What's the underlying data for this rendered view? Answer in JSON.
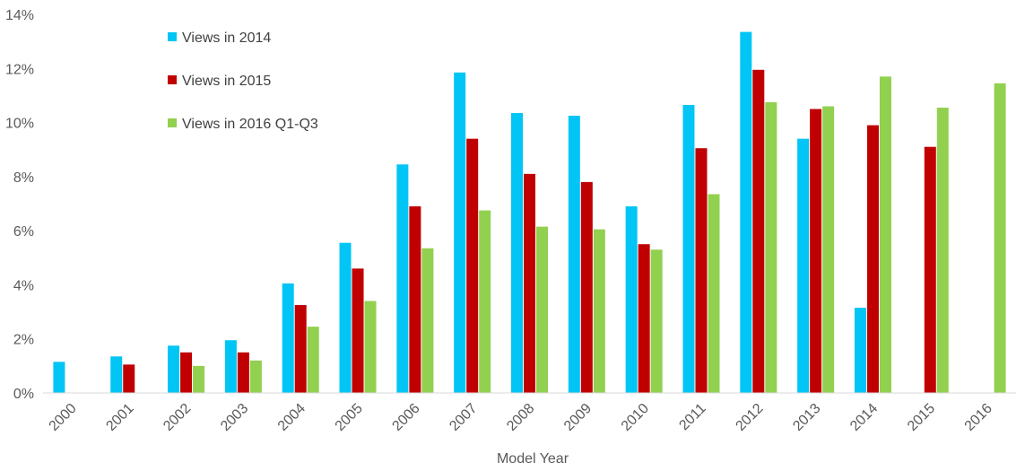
{
  "chart_data": {
    "type": "bar",
    "title": "",
    "xlabel": "Model Year",
    "ylabel": "",
    "ylim": [
      0,
      14
    ],
    "y_ticks": [
      "0%",
      "2%",
      "4%",
      "6%",
      "8%",
      "10%",
      "12%",
      "14%"
    ],
    "y_unit": "%",
    "grid": false,
    "legend_position": "top-left",
    "categories": [
      "2000",
      "2001",
      "2002",
      "2003",
      "2004",
      "2005",
      "2006",
      "2007",
      "2008",
      "2009",
      "2010",
      "2011",
      "2012",
      "2013",
      "2014",
      "2015",
      "2016"
    ],
    "series": [
      {
        "name": "Views in 2014",
        "color": "#00c5f5",
        "values": [
          1.15,
          1.35,
          1.75,
          1.95,
          4.05,
          5.55,
          8.45,
          11.85,
          10.35,
          10.25,
          6.9,
          10.65,
          13.35,
          9.4,
          3.15,
          null,
          null
        ]
      },
      {
        "name": "Views in 2015",
        "color": "#c00000",
        "values": [
          null,
          1.05,
          1.5,
          1.5,
          3.25,
          4.6,
          6.9,
          9.4,
          8.1,
          7.8,
          5.5,
          9.05,
          11.95,
          10.5,
          9.9,
          9.1,
          null
        ]
      },
      {
        "name": "Views in 2016 Q1-Q3",
        "color": "#92d050",
        "values": [
          null,
          null,
          1.0,
          1.2,
          2.45,
          3.4,
          5.35,
          6.75,
          6.15,
          6.05,
          5.3,
          7.35,
          10.75,
          10.6,
          11.7,
          10.55,
          11.45
        ]
      }
    ]
  }
}
